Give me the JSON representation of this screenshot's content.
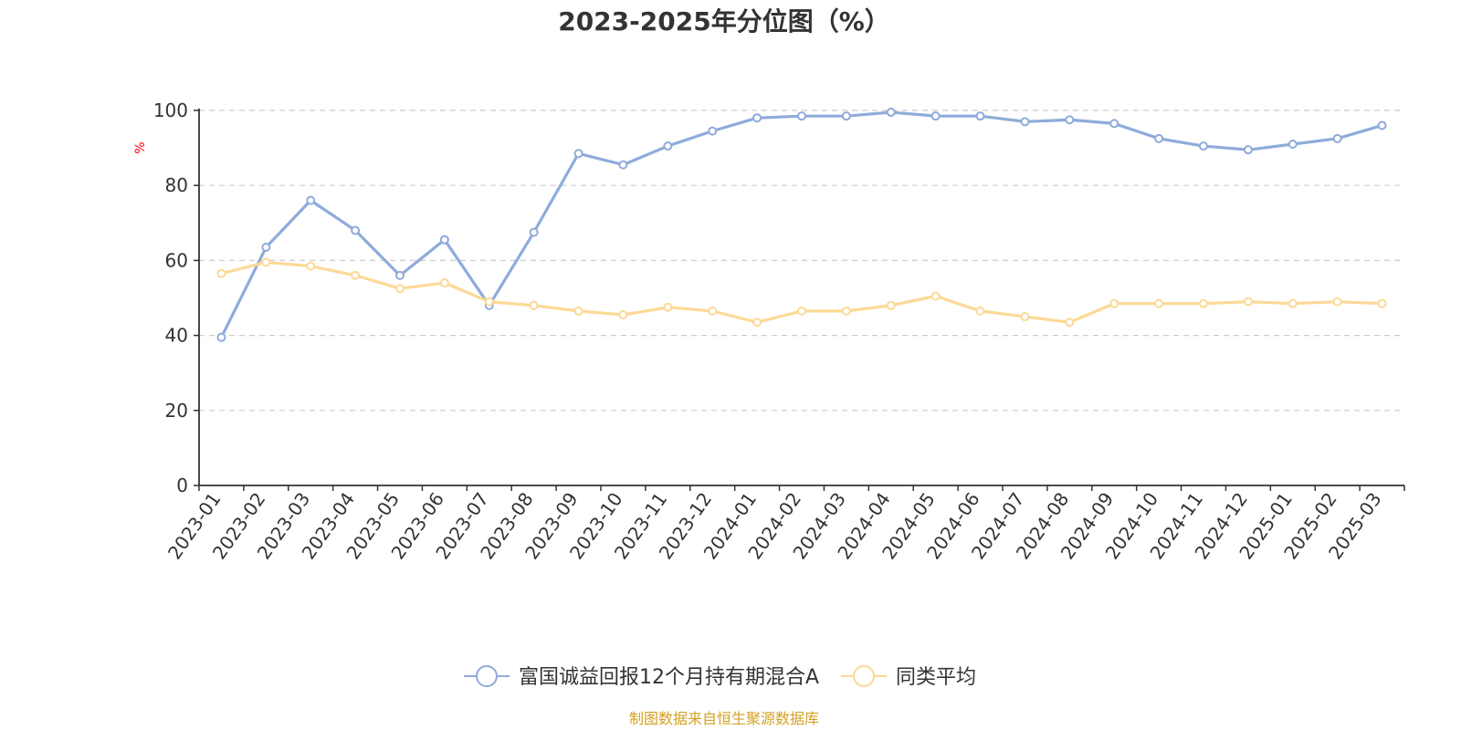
{
  "chart_data": {
    "type": "line",
    "title": "2023-2025年分位图（%）",
    "ylabel": "%",
    "xlabel": "",
    "ylim": [
      0,
      100
    ],
    "yticks": [
      0,
      20,
      40,
      60,
      80,
      100
    ],
    "grid": true,
    "legend_position": "bottom",
    "categories": [
      "2023-01",
      "2023-02",
      "2023-03",
      "2023-04",
      "2023-05",
      "2023-06",
      "2023-07",
      "2023-08",
      "2023-09",
      "2023-10",
      "2023-11",
      "2023-12",
      "2024-01",
      "2024-02",
      "2024-03",
      "2024-04",
      "2024-05",
      "2024-06",
      "2024-07",
      "2024-08",
      "2024-09",
      "2024-10",
      "2024-11",
      "2024-12",
      "2025-01",
      "2025-02",
      "2025-03"
    ],
    "series": [
      {
        "name": "富国诚益回报12个月持有期混合A",
        "color": "#8fabdb",
        "values": [
          39.5,
          63.5,
          76,
          68,
          56,
          65.5,
          48,
          67.5,
          88.5,
          85.5,
          90.5,
          94.5,
          98,
          98.5,
          98.5,
          99.5,
          98.5,
          98.5,
          97,
          97.5,
          96.5,
          92.5,
          90.5,
          89.5,
          91,
          92.5,
          96
        ]
      },
      {
        "name": "同类平均",
        "color": "#fcd996",
        "values": [
          56.5,
          59.5,
          58.5,
          56,
          52.5,
          54,
          49,
          48,
          46.5,
          45.5,
          47.5,
          46.5,
          43.5,
          46.5,
          46.5,
          48,
          50.5,
          46.5,
          45,
          43.5,
          48.5,
          48.5,
          48.5,
          49,
          48.5,
          49,
          48.5
        ]
      }
    ]
  },
  "colors": {
    "axis": "#333333",
    "grid": "#cccccc",
    "ylabel": "#ff0000",
    "source": "#d4a024"
  },
  "source_text": "制图数据来自恒生聚源数据库"
}
